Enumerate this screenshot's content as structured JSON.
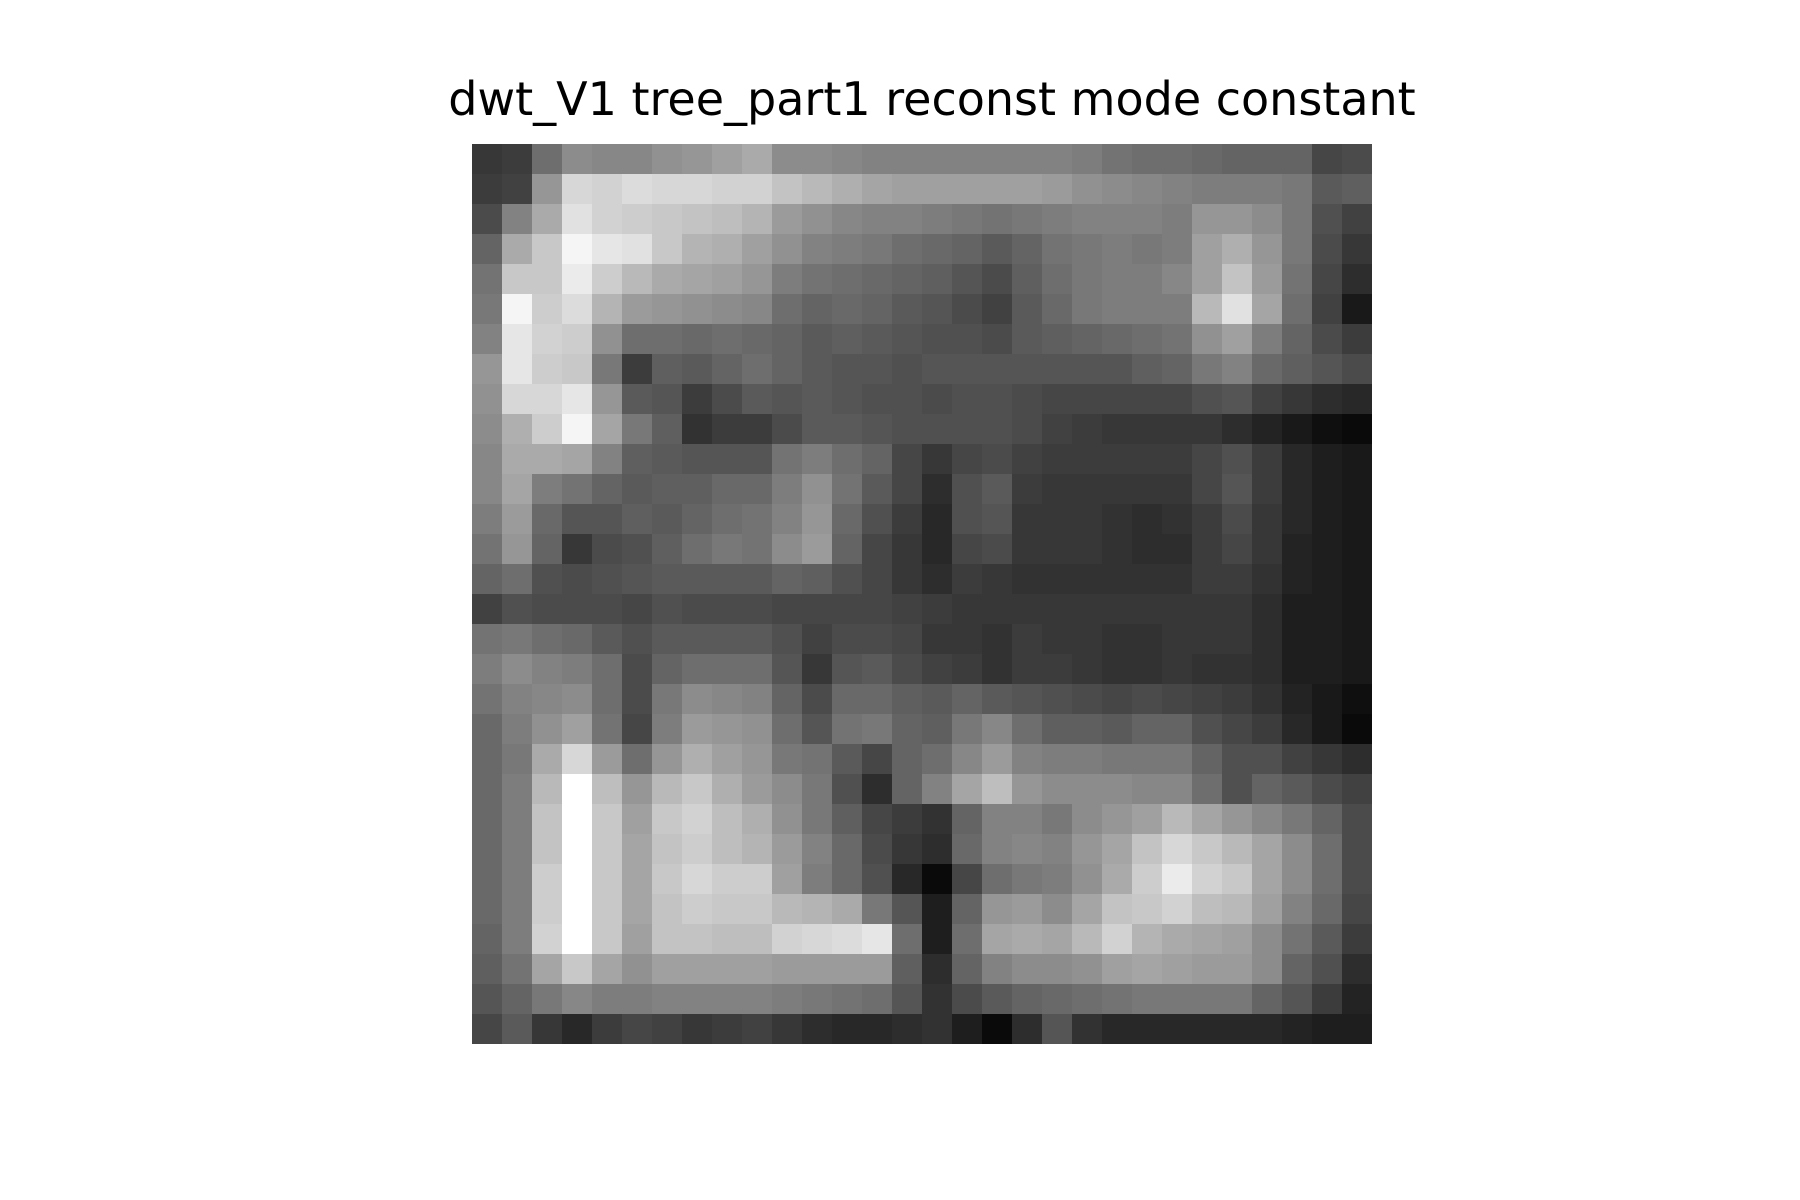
{
  "chart_data": {
    "type": "heatmap",
    "title": "dwt_V1 tree_part1 reconst mode constant",
    "xlabel": "",
    "ylabel": "",
    "axes_visible": false,
    "colormap": "gray",
    "vmin": 0,
    "vmax": 255,
    "rows": 30,
    "cols": 30,
    "values": [
      [
        55,
        60,
        110,
        140,
        135,
        135,
        145,
        150,
        160,
        170,
        140,
        140,
        135,
        130,
        130,
        130,
        130,
        130,
        130,
        130,
        125,
        115,
        110,
        110,
        105,
        100,
        100,
        100,
        70,
        75
      ],
      [
        60,
        65,
        150,
        215,
        210,
        220,
        215,
        215,
        210,
        210,
        195,
        185,
        175,
        165,
        160,
        160,
        160,
        160,
        160,
        155,
        145,
        140,
        135,
        130,
        125,
        125,
        125,
        120,
        90,
        95
      ],
      [
        75,
        130,
        170,
        225,
        210,
        205,
        200,
        195,
        190,
        180,
        155,
        145,
        135,
        130,
        130,
        125,
        120,
        115,
        120,
        125,
        130,
        130,
        130,
        125,
        150,
        150,
        140,
        120,
        80,
        65
      ],
      [
        100,
        170,
        200,
        245,
        230,
        225,
        200,
        180,
        175,
        160,
        145,
        130,
        125,
        120,
        110,
        105,
        100,
        90,
        100,
        115,
        120,
        125,
        120,
        125,
        160,
        175,
        150,
        120,
        75,
        55
      ],
      [
        115,
        200,
        200,
        235,
        205,
        185,
        170,
        165,
        160,
        150,
        125,
        115,
        110,
        105,
        100,
        95,
        85,
        75,
        95,
        110,
        120,
        125,
        125,
        135,
        160,
        195,
        155,
        115,
        70,
        45
      ],
      [
        120,
        245,
        205,
        220,
        180,
        155,
        150,
        145,
        140,
        135,
        110,
        100,
        105,
        100,
        90,
        85,
        75,
        65,
        90,
        105,
        120,
        125,
        125,
        125,
        185,
        225,
        165,
        110,
        65,
        25
      ],
      [
        130,
        230,
        210,
        205,
        145,
        110,
        110,
        105,
        110,
        105,
        100,
        90,
        95,
        90,
        85,
        80,
        80,
        75,
        90,
        95,
        100,
        105,
        110,
        115,
        145,
        160,
        125,
        100,
        75,
        60
      ],
      [
        150,
        230,
        205,
        200,
        120,
        60,
        95,
        90,
        100,
        110,
        100,
        90,
        85,
        85,
        80,
        85,
        85,
        85,
        85,
        85,
        85,
        85,
        95,
        100,
        120,
        130,
        105,
        95,
        85,
        75
      ],
      [
        145,
        215,
        215,
        230,
        150,
        90,
        85,
        60,
        75,
        90,
        85,
        90,
        85,
        80,
        80,
        75,
        80,
        80,
        75,
        70,
        70,
        70,
        70,
        70,
        80,
        85,
        65,
        55,
        45,
        40
      ],
      [
        140,
        175,
        205,
        245,
        165,
        120,
        95,
        50,
        60,
        60,
        75,
        90,
        90,
        85,
        80,
        80,
        80,
        80,
        75,
        65,
        60,
        55,
        55,
        55,
        55,
        45,
        35,
        25,
        15,
        10
      ],
      [
        135,
        170,
        170,
        165,
        130,
        95,
        90,
        85,
        85,
        85,
        115,
        125,
        110,
        100,
        70,
        55,
        70,
        75,
        65,
        60,
        60,
        60,
        60,
        60,
        70,
        80,
        60,
        40,
        30,
        25
      ],
      [
        135,
        165,
        125,
        115,
        100,
        90,
        95,
        95,
        105,
        105,
        125,
        145,
        115,
        90,
        70,
        45,
        80,
        90,
        60,
        55,
        55,
        55,
        55,
        55,
        70,
        85,
        60,
        40,
        30,
        25
      ],
      [
        125,
        155,
        105,
        85,
        85,
        95,
        90,
        100,
        110,
        115,
        130,
        150,
        105,
        80,
        60,
        40,
        80,
        85,
        55,
        55,
        55,
        50,
        45,
        50,
        60,
        75,
        55,
        40,
        30,
        25
      ],
      [
        115,
        150,
        100,
        55,
        75,
        80,
        95,
        110,
        120,
        115,
        140,
        155,
        100,
        70,
        55,
        40,
        70,
        75,
        55,
        55,
        55,
        50,
        45,
        45,
        60,
        70,
        55,
        35,
        30,
        25
      ],
      [
        100,
        110,
        80,
        75,
        80,
        85,
        90,
        90,
        90,
        90,
        100,
        95,
        80,
        70,
        55,
        45,
        60,
        55,
        50,
        50,
        50,
        50,
        50,
        50,
        60,
        60,
        50,
        35,
        30,
        25
      ],
      [
        65,
        80,
        75,
        75,
        75,
        70,
        80,
        75,
        75,
        75,
        70,
        70,
        70,
        70,
        65,
        60,
        55,
        55,
        55,
        55,
        55,
        55,
        55,
        55,
        55,
        55,
        45,
        30,
        30,
        25
      ],
      [
        115,
        120,
        110,
        105,
        90,
        80,
        90,
        90,
        90,
        90,
        80,
        65,
        75,
        75,
        70,
        55,
        55,
        50,
        60,
        55,
        55,
        50,
        50,
        55,
        55,
        55,
        45,
        30,
        30,
        25
      ],
      [
        125,
        140,
        130,
        125,
        110,
        75,
        100,
        110,
        110,
        110,
        85,
        55,
        85,
        90,
        75,
        65,
        60,
        50,
        60,
        60,
        55,
        50,
        50,
        55,
        50,
        50,
        45,
        30,
        30,
        25
      ],
      [
        115,
        130,
        135,
        140,
        110,
        75,
        120,
        140,
        135,
        130,
        100,
        75,
        105,
        105,
        95,
        90,
        100,
        90,
        85,
        80,
        75,
        70,
        75,
        70,
        65,
        60,
        50,
        35,
        25,
        15
      ],
      [
        105,
        125,
        145,
        160,
        115,
        70,
        125,
        155,
        150,
        145,
        110,
        85,
        115,
        120,
        100,
        95,
        120,
        135,
        110,
        95,
        95,
        90,
        100,
        100,
        80,
        70,
        60,
        40,
        25,
        10
      ],
      [
        105,
        120,
        170,
        215,
        155,
        110,
        150,
        175,
        160,
        150,
        120,
        115,
        90,
        70,
        100,
        110,
        135,
        155,
        130,
        125,
        125,
        120,
        120,
        120,
        100,
        80,
        80,
        65,
        55,
        45
      ],
      [
        105,
        125,
        185,
        255,
        190,
        150,
        185,
        200,
        175,
        155,
        140,
        120,
        80,
        45,
        100,
        130,
        165,
        190,
        150,
        140,
        140,
        140,
        135,
        135,
        110,
        80,
        100,
        90,
        75,
        65
      ],
      [
        105,
        125,
        195,
        255,
        200,
        160,
        200,
        210,
        190,
        175,
        145,
        120,
        95,
        70,
        60,
        50,
        100,
        130,
        130,
        120,
        140,
        150,
        160,
        185,
        165,
        150,
        135,
        120,
        100,
        75
      ],
      [
        105,
        125,
        195,
        255,
        200,
        165,
        195,
        205,
        190,
        180,
        155,
        130,
        105,
        75,
        55,
        45,
        105,
        130,
        135,
        130,
        150,
        165,
        195,
        215,
        200,
        185,
        165,
        140,
        110,
        75
      ],
      [
        105,
        125,
        205,
        255,
        200,
        165,
        200,
        215,
        205,
        205,
        160,
        125,
        105,
        80,
        40,
        10,
        70,
        110,
        120,
        125,
        145,
        170,
        205,
        235,
        210,
        200,
        165,
        140,
        110,
        75
      ],
      [
        105,
        125,
        205,
        255,
        200,
        165,
        195,
        205,
        200,
        200,
        185,
        180,
        170,
        120,
        85,
        30,
        100,
        150,
        155,
        140,
        165,
        195,
        200,
        210,
        190,
        185,
        160,
        130,
        105,
        70
      ],
      [
        100,
        125,
        210,
        255,
        200,
        160,
        195,
        195,
        190,
        190,
        210,
        215,
        220,
        230,
        110,
        30,
        110,
        165,
        170,
        165,
        185,
        210,
        180,
        170,
        165,
        160,
        140,
        115,
        90,
        60
      ],
      [
        95,
        115,
        165,
        200,
        165,
        145,
        160,
        160,
        160,
        160,
        155,
        155,
        155,
        155,
        95,
        45,
        100,
        130,
        140,
        140,
        145,
        160,
        165,
        160,
        155,
        155,
        140,
        100,
        80,
        45
      ],
      [
        85,
        100,
        120,
        135,
        125,
        125,
        130,
        130,
        130,
        130,
        125,
        120,
        115,
        110,
        85,
        50,
        75,
        90,
        100,
        105,
        110,
        115,
        120,
        120,
        120,
        120,
        100,
        85,
        60,
        35
      ],
      [
        70,
        90,
        55,
        40,
        60,
        70,
        65,
        55,
        60,
        65,
        55,
        45,
        40,
        40,
        45,
        50,
        30,
        10,
        45,
        85,
        50,
        40,
        40,
        40,
        40,
        40,
        40,
        35,
        30,
        30
      ]
    ]
  }
}
